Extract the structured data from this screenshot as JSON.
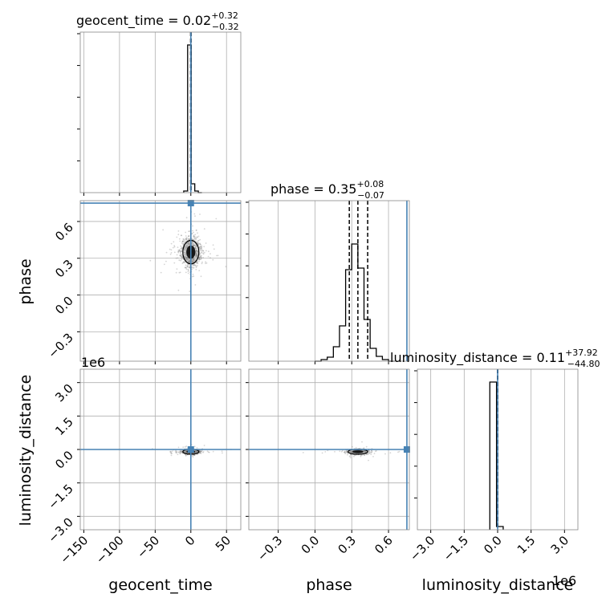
{
  "chart_data": {
    "type": "corner",
    "parameters": [
      "geocent_time",
      "phase",
      "luminosity_distance"
    ],
    "truths": {
      "geocent_time": 0.0,
      "phase": 0.75,
      "luminosity_distance": 0.0
    },
    "titles": {
      "geocent_time": {
        "name": "geocent_time = ",
        "median": "0.02",
        "upper": "+0.32",
        "lower": "−0.32"
      },
      "phase": {
        "name": "phase = ",
        "median": "0.35",
        "upper": "+0.08",
        "lower": "−0.07"
      },
      "luminosity_distance": {
        "name": "luminosity_distance = ",
        "median": "0.11",
        "upper": "+37.92",
        "lower": "−44.80"
      }
    },
    "ranges": {
      "geocent_time": [
        -155,
        70
      ],
      "phase": [
        -0.54,
        0.77
      ],
      "luminosity_distance": [
        -3600000,
        3600000
      ]
    },
    "ticks": {
      "geocent_time": {
        "values": [
          -150,
          -100,
          -50,
          0,
          50
        ],
        "labels": [
          "−150",
          "−100",
          "−50",
          "0",
          "50"
        ]
      },
      "phase": {
        "values": [
          -0.3,
          0.0,
          0.3,
          0.6
        ],
        "labels": [
          "−0.3",
          "0.0",
          "0.3",
          "0.6"
        ]
      },
      "luminosity_distance": {
        "values": [
          -3000000,
          -1500000,
          0,
          1500000,
          3000000
        ],
        "labels": [
          "−3.0",
          "−1.5",
          "0.0",
          "1.5",
          "3.0"
        ],
        "offset_label": "1e6"
      }
    },
    "quantile_lines": {
      "geocent_time": [
        -0.3,
        0.02,
        0.34
      ],
      "phase": [
        0.28,
        0.35,
        0.43
      ],
      "luminosity_distance": [
        -44.7,
        0.11,
        38.0
      ]
    },
    "histograms": {
      "geocent_time": {
        "bin_edges": [
          -10,
          -4.5,
          0.5,
          5.5,
          10.5,
          15.5
        ],
        "counts": [
          0.01,
          0.92,
          0.055,
          0.01,
          0.0
        ]
      },
      "phase": {
        "bin_edges": [
          0.0,
          0.05,
          0.1,
          0.15,
          0.2,
          0.25,
          0.3,
          0.35,
          0.4,
          0.45,
          0.5,
          0.55,
          0.6,
          0.65
        ],
        "counts": [
          0.0,
          0.01,
          0.025,
          0.09,
          0.22,
          0.57,
          0.73,
          0.58,
          0.26,
          0.08,
          0.03,
          0.01,
          0.0
        ]
      },
      "luminosity_distance": {
        "bin_edges": [
          -350000,
          -50000,
          250000
        ],
        "counts": [
          0.92,
          0.02
        ]
      }
    },
    "scatter": {
      "phase_vs_geocent_time": {
        "x_center": 0.0,
        "x_spread": 7.0,
        "y_center": 0.35,
        "y_spread": 0.06
      },
      "ld_vs_geocent_time": {
        "x_center": 0.0,
        "x_spread": 7.0,
        "y_center": -100000,
        "y_spread": 60000
      },
      "ld_vs_phase": {
        "x_center": 0.35,
        "x_spread": 0.05,
        "y_center": -100000,
        "y_spread": 60000
      }
    },
    "colors": {
      "truth": "#4682b4",
      "hist": "#000000",
      "grid": "#b0b0b0",
      "points": "#888888"
    }
  }
}
